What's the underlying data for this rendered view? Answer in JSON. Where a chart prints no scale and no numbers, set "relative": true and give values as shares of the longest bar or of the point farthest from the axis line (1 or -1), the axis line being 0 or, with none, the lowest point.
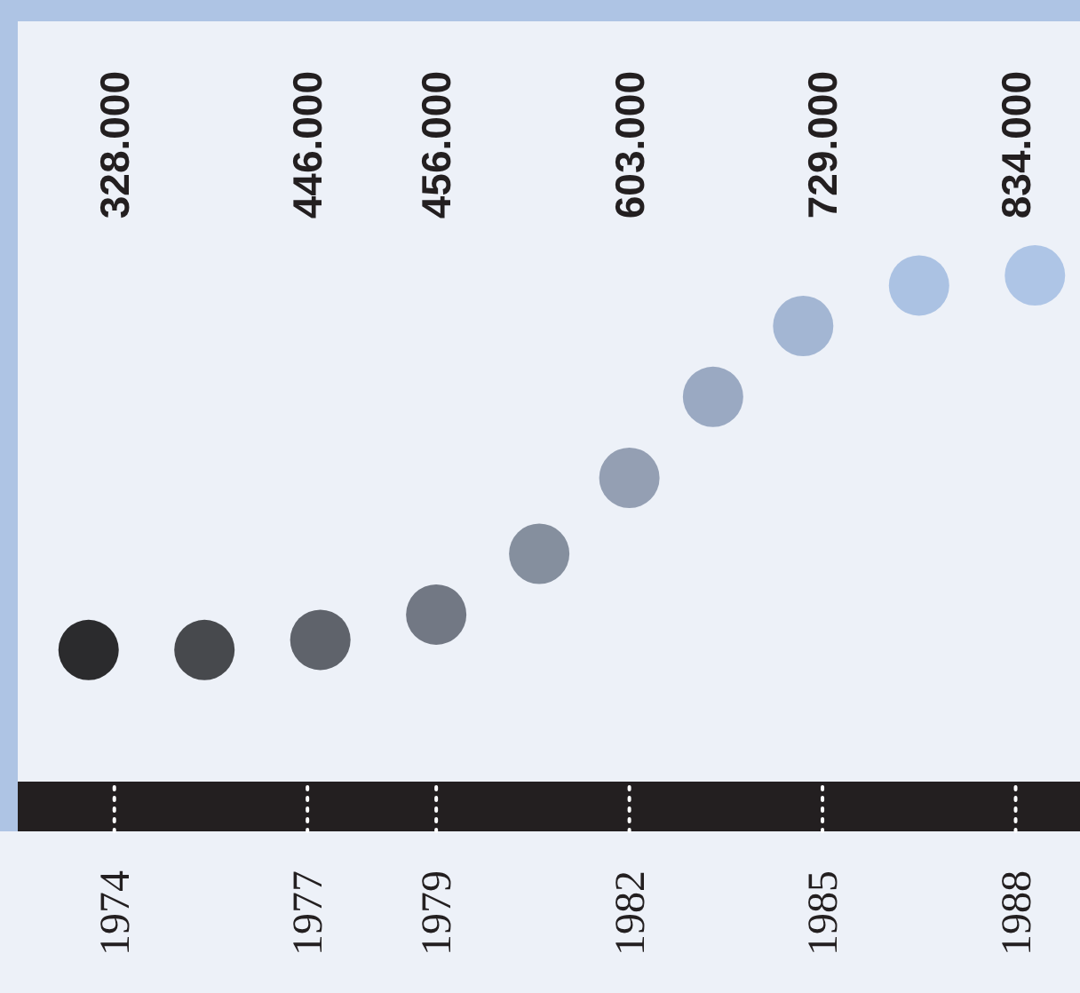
{
  "chart_data": {
    "type": "scatter",
    "relative": true,
    "marker": "circle",
    "xlim": [
      1972.5,
      1989
    ],
    "xticks": [
      1974,
      1977,
      1979,
      1982,
      1985,
      1988
    ],
    "x": [
      1973.6,
      1975.4,
      1977.2,
      1979.0,
      1980.6,
      1982.0,
      1983.3,
      1984.7,
      1986.5,
      1988.3
    ],
    "values": [
      0.26,
      0.26,
      0.28,
      0.33,
      0.45,
      0.6,
      0.76,
      0.9,
      0.98,
      1
    ],
    "colors": [
      "#2b2b2d",
      "#47494d",
      "#5f636b",
      "#727884",
      "#858f9e",
      "#949fb3",
      "#9aa9c2",
      "#a3b6d3",
      "#abc2e3",
      "#aec5e6"
    ],
    "annotations": [
      "328.000",
      "446.000",
      "456.000",
      "603.000",
      "729.000",
      "834.000"
    ]
  }
}
